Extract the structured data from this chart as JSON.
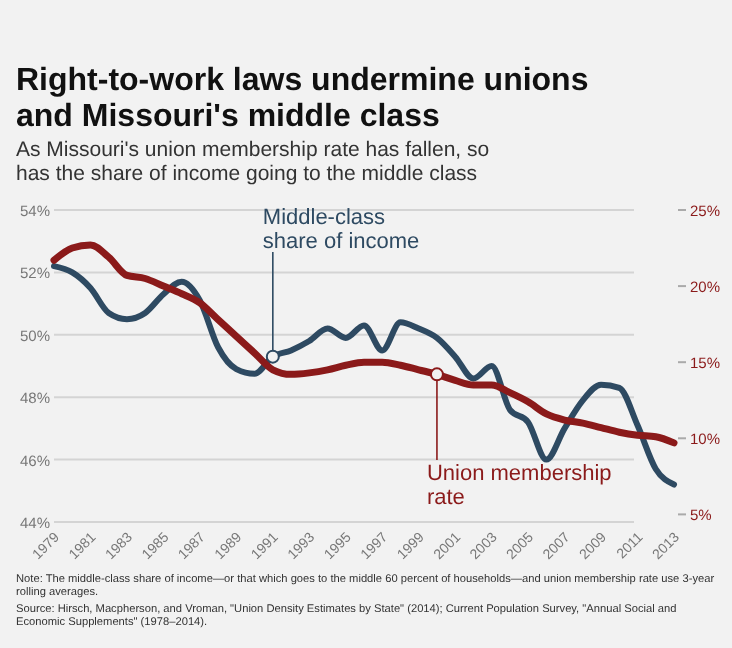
{
  "chart_data": {
    "type": "line",
    "title": "Right-to-work laws undermine unions and Missouri's middle class",
    "subtitle": "As Missouri's union membership rate has fallen, so has the share of income going to the middle class",
    "x": [
      1979,
      1980,
      1981,
      1982,
      1983,
      1984,
      1985,
      1986,
      1987,
      1988,
      1989,
      1990,
      1991,
      1992,
      1993,
      1994,
      1995,
      1996,
      1997,
      1998,
      1999,
      2000,
      2001,
      2002,
      2003,
      2004,
      2005,
      2006,
      2007,
      2008,
      2009,
      2010,
      2011,
      2012,
      2013
    ],
    "series": [
      {
        "name": "Middle-class share of income",
        "color": "#2e4a62",
        "values": [
          52.2,
          52.0,
          51.5,
          50.7,
          50.5,
          50.7,
          51.3,
          51.7,
          51.1,
          49.6,
          48.9,
          48.75,
          49.3,
          49.5,
          49.8,
          50.2,
          49.9,
          50.3,
          49.5,
          50.4,
          50.2,
          49.9,
          49.3,
          48.6,
          49.0,
          47.6,
          47.2,
          46.0,
          47.0,
          47.9,
          48.4,
          48.3,
          47.1,
          45.7,
          45.2
        ]
      },
      {
        "name": "Union membership rate",
        "color": "#8b1a1a",
        "axis": "y2",
        "values": [
          21.7,
          22.5,
          22.7,
          21.9,
          20.7,
          20.5,
          20.0,
          19.5,
          18.9,
          17.8,
          16.7,
          15.6,
          14.5,
          14.2,
          14.3,
          14.5,
          14.8,
          15.0,
          15.0,
          14.8,
          14.5,
          14.2,
          13.8,
          13.5,
          13.5,
          13.0,
          12.4,
          11.6,
          11.2,
          11.0,
          10.7,
          10.4,
          10.2,
          10.1,
          9.7
        ]
      }
    ],
    "xlim": [
      1979,
      2013
    ],
    "xticks": [
      1979,
      1981,
      1983,
      1985,
      1987,
      1989,
      1991,
      1993,
      1995,
      1997,
      1999,
      2001,
      2003,
      2005,
      2007,
      2009,
      2011,
      2013
    ],
    "ylim": [
      44,
      54
    ],
    "yticks": [
      {
        "value": 44,
        "label": "44%"
      },
      {
        "value": 46,
        "label": "46%"
      },
      {
        "value": 48,
        "label": "48%"
      },
      {
        "value": 50,
        "label": "50%"
      },
      {
        "value": 52,
        "label": "52%"
      },
      {
        "value": 54,
        "label": "54%"
      }
    ],
    "y2lim": [
      4.5,
      25
    ],
    "y2ticks": [
      {
        "value": 5,
        "label": "5%"
      },
      {
        "value": 10,
        "label": "10%"
      },
      {
        "value": 15,
        "label": "15%"
      },
      {
        "value": 20,
        "label": "20%"
      },
      {
        "value": 25,
        "label": "25%"
      }
    ],
    "grid": "y",
    "legend": false,
    "annotations": [
      "Note: The middle-class share of income—or that which goes to the middle 60 percent of households—and union membership rate use 3-year rolling averages.",
      "Source: Hirsch, Macpherson, and Vroman, \"Union Density Estimates by State\" (2014); Current Population Survey, \"Annual Social and Economic Supplements\" (1978–2014)."
    ]
  }
}
